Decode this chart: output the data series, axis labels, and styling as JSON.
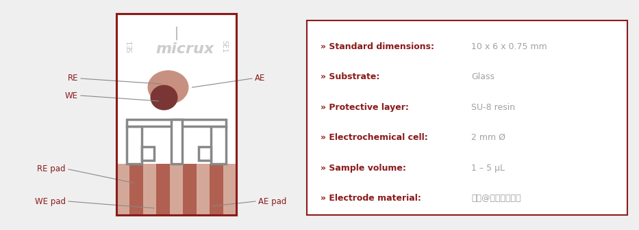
{
  "bg_color": "#efefef",
  "card_bg": "#ffffff",
  "border_color": "#8b1a1a",
  "dark_red": "#8b1a1a",
  "gray_value": "#a0a0a0",
  "light_gray": "#c0c0c0",
  "copper_dark": "#7a3535",
  "copper_mid": "#b06050",
  "copper_light": "#c89080",
  "copper_stripe_light": "#d4a898",
  "electrode_gray": "#888888",
  "specs": [
    [
      "» Standard dimensions:",
      "10 x 6 x 0.75 mm"
    ],
    [
      "» Substrate:",
      "Glass"
    ],
    [
      "» Protective layer:",
      "SU-8 resin"
    ],
    [
      "» Electrochemical cell:",
      "2 mm Ø"
    ],
    [
      "» Sample volume:",
      "1 – 5 μL"
    ],
    [
      "» Electrode material:",
      "知乎@奕验室自动化"
    ]
  ],
  "micrux_text": "micrux",
  "se1_text": "SE1"
}
